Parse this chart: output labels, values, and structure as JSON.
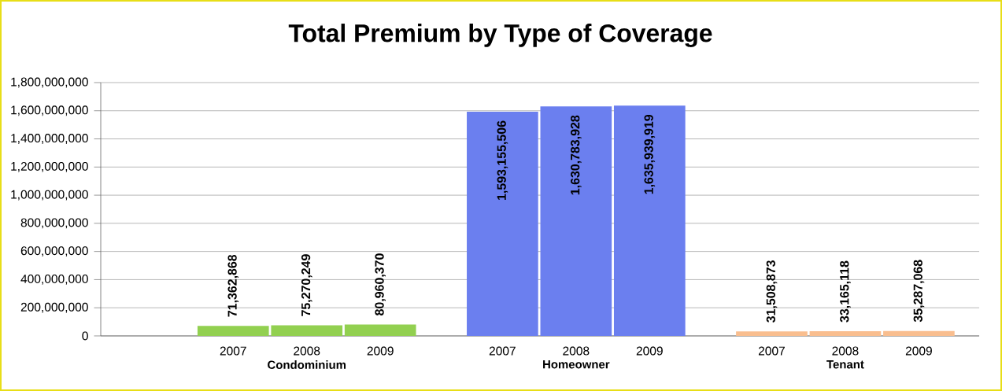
{
  "chart_data": {
    "type": "bar",
    "title": "Total Premium by Type of Coverage",
    "categories": [
      "2007",
      "2008",
      "2009",
      "2007",
      "2008",
      "2009",
      "2007",
      "2008",
      "2009"
    ],
    "values": [
      71362868,
      75270249,
      80960370,
      1593155506,
      1630783928,
      1635939919,
      31508873,
      33165118,
      35287068
    ],
    "colors": [
      "#92d050",
      "#92d050",
      "#92d050",
      "#6b7fef",
      "#6b7fef",
      "#6b7fef",
      "#f9be8f",
      "#f9be8f",
      "#f9be8f"
    ],
    "value_labels": [
      "71,362,868",
      "75,270,249",
      "80,960,370",
      "1,593,155,506",
      "1,630,783,928",
      "1,635,939,919",
      "31,508,873",
      "33,165,118",
      "35,287,068"
    ],
    "annotations": [
      "Condominium",
      "Homeowner",
      "Tenant"
    ],
    "ylim": [
      0,
      1800000000
    ],
    "yticks": [
      0,
      {
        "value": 200000000,
        "label": "200,000,000"
      },
      {
        "value": 400000000,
        "label": "400,000,000"
      },
      {
        "value": 600000000,
        "label": "600,000,000"
      },
      {
        "value": 800000000,
        "label": "800,000,000"
      },
      {
        "value": 1000000000,
        "label": "1,000,000,000"
      },
      {
        "value": 1200000000,
        "label": "1,200,000,000"
      },
      {
        "value": 1400000000,
        "label": "1,400,000,000"
      },
      {
        "value": 1600000000,
        "label": "1,600,000,000"
      },
      {
        "value": 1800000000,
        "label": "1,800,000,000"
      }
    ],
    "grid": "y"
  }
}
